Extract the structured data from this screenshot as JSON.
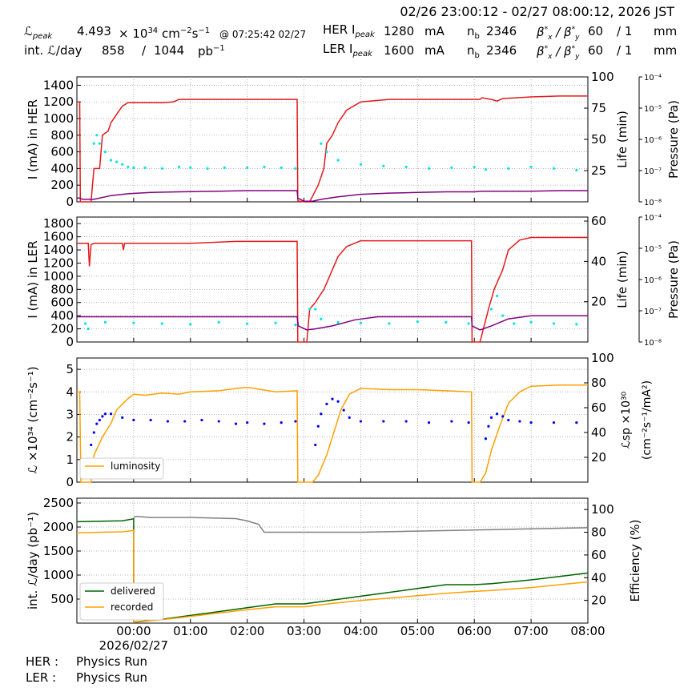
{
  "header": {
    "time_range": "02/26 23:00:12 - 02/27 08:00:12, 2026 JST",
    "peak_lumi_label": "ℒ",
    "peak_lumi_sub": "peak",
    "peak_lumi_value": "4.493",
    "peak_lumi_times": "× 10",
    "peak_lumi_exp": "34",
    "peak_lumi_unit": "cm",
    "peak_lumi_unit_exp1": "−2",
    "peak_lumi_unit_s": "s",
    "peak_lumi_unit_exp2": "−1",
    "peak_time": "@ 07:25:42 02/27",
    "int_label": "int. ℒ/day",
    "int_value": "858",
    "int_sep": "/",
    "int_total": "1044",
    "int_unit": "pb",
    "int_unit_exp": "−1",
    "her_label": "HER I",
    "her_sub": "peak",
    "her_value": "1280",
    "her_unit": "mA",
    "her_nb_label": "n",
    "her_nb_sub": "b",
    "her_nb": "2346",
    "beta_label": "β",
    "beta_x_sub": "x",
    "beta_sep": "/ β",
    "beta_y_sub": "y",
    "beta_star": "*",
    "her_beta_x": "60",
    "her_beta_sep": "/ 1",
    "her_beta_unit": "mm",
    "ler_label": "LER I",
    "ler_sub": "peak",
    "ler_value": "1600",
    "ler_unit": "mA",
    "ler_nb_label": "n",
    "ler_nb_sub": "b",
    "ler_nb": "2346",
    "ler_beta_x": "60",
    "ler_beta_sep": "/ 1",
    "ler_beta_unit": "mm"
  },
  "footer": {
    "her_label": "HER :",
    "her_status": "Physics Run",
    "ler_label": "LER :",
    "ler_status": "Physics Run"
  },
  "colors": {
    "current": "#e31a1c",
    "life": "#800080",
    "pressure": "#00e5e5",
    "luminosity": "#ffa000",
    "specific": "#0000ff",
    "delivered": "#006400",
    "recorded": "#ffa000",
    "efficiency": "#808080"
  },
  "chart_data": [
    {
      "type": "line",
      "id": "her",
      "x_unit": "hours since 2026/02/26 23:00:12",
      "ylabel": "I (mA) in HER",
      "ylim": [
        0,
        1500
      ],
      "yticks": [
        0,
        200,
        400,
        600,
        800,
        1000,
        1200,
        1400
      ],
      "y2label": "Life (min)",
      "y2lim": [
        0,
        100
      ],
      "y2ticks": [
        25,
        50,
        75,
        100
      ],
      "y3label": "Pressure (Pa)",
      "y3log": true,
      "y3ticks": [
        "10⁻⁸",
        "10⁻⁷",
        "10⁻⁶",
        "10⁻⁵",
        "10⁻⁴"
      ],
      "grid": true,
      "series": [
        {
          "role": "current",
          "axis": "y",
          "x": [
            0,
            0.05,
            0.06,
            0.25,
            0.3,
            0.35,
            0.4,
            0.45,
            0.55,
            0.6,
            0.7,
            0.8,
            0.9,
            1.0,
            1.2,
            1.5,
            1.7,
            1.8,
            2.0,
            2.4,
            2.8,
            3.88,
            3.89,
            3.9,
            4.0,
            4.1,
            4.25,
            4.35,
            4.4,
            4.5,
            4.6,
            4.75,
            5.0,
            5.5,
            6.0,
            6.5,
            7.0,
            7.1,
            7.14,
            7.2,
            7.3,
            7.4,
            7.5,
            8.0,
            8.5,
            9.0
          ],
          "y": [
            1200,
            1200,
            0,
            0,
            400,
            400,
            400,
            800,
            850,
            950,
            1050,
            1150,
            1190,
            1190,
            1190,
            1190,
            1200,
            1230,
            1230,
            1230,
            1230,
            1230,
            20,
            10,
            0,
            0,
            200,
            400,
            700,
            800,
            950,
            1100,
            1200,
            1230,
            1230,
            1230,
            1230,
            1230,
            1250,
            1240,
            1230,
            1210,
            1240,
            1260,
            1270,
            1270
          ]
        },
        {
          "role": "life",
          "axis": "y2",
          "x": [
            0,
            0.05,
            0.1,
            0.3,
            0.6,
            0.9,
            1.3,
            1.8,
            2.5,
            3.0,
            3.88,
            3.89,
            4.0,
            4.15,
            4.3,
            4.6,
            5.0,
            5.5,
            6.0,
            6.5,
            7.0,
            7.14,
            7.5,
            8.0,
            8.5,
            9.0
          ],
          "y": [
            3,
            3,
            2,
            2,
            5,
            6.5,
            7.5,
            8,
            8.5,
            9,
            9,
            3,
            0.5,
            0.5,
            2,
            4,
            6,
            7,
            7.5,
            8,
            8,
            8.5,
            8.5,
            8.5,
            9,
            9
          ]
        },
        {
          "role": "pressure",
          "axis": "y",
          "style": "dots",
          "x": [
            0.3,
            0.35,
            0.4,
            0.5,
            0.6,
            0.7,
            0.8,
            0.9,
            1.0,
            1.2,
            1.5,
            1.8,
            2.0,
            2.3,
            2.6,
            3.0,
            3.3,
            3.6,
            3.85,
            4.3,
            4.4,
            4.6,
            5.0,
            5.4,
            5.8,
            6.2,
            6.6,
            7.0,
            7.2,
            7.6,
            8.0,
            8.4,
            8.8
          ],
          "y": [
            700,
            800,
            700,
            600,
            500,
            480,
            450,
            420,
            410,
            410,
            400,
            420,
            410,
            400,
            410,
            410,
            420,
            410,
            400,
            700,
            600,
            500,
            450,
            430,
            420,
            400,
            410,
            420,
            390,
            400,
            420,
            400,
            380
          ]
        }
      ]
    },
    {
      "type": "line",
      "id": "ler",
      "ylabel": "I (mA) in LER",
      "ylim": [
        0,
        1900
      ],
      "yticks": [
        0,
        200,
        400,
        600,
        800,
        1000,
        1200,
        1400,
        1600,
        1800
      ],
      "y2label": "Life (min)",
      "y2lim": [
        0,
        62
      ],
      "y2ticks": [
        20,
        40,
        60
      ],
      "y3label": "Pressure (Pa)",
      "y3log": true,
      "y3ticks": [
        "10⁻⁸",
        "10⁻⁷",
        "10⁻⁶",
        "10⁻⁵",
        "10⁻⁴"
      ],
      "grid": true,
      "series": [
        {
          "role": "current",
          "axis": "y",
          "x": [
            0,
            0.2,
            0.22,
            0.25,
            0.3,
            0.8,
            0.82,
            0.84,
            1.0,
            2.0,
            2.8,
            3.0,
            3.88,
            3.89,
            3.9,
            4.05,
            4.1,
            4.2,
            4.35,
            4.45,
            4.6,
            4.75,
            5.0,
            5.5,
            6.0,
            6.95,
            6.96,
            7.0,
            7.1,
            7.25,
            7.35,
            7.5,
            7.6,
            7.8,
            8.0,
            8.5,
            9.0
          ],
          "y": [
            1500,
            1500,
            1150,
            1480,
            1500,
            1500,
            1400,
            1500,
            1500,
            1500,
            1530,
            1530,
            1530,
            0,
            0,
            0,
            500,
            600,
            800,
            1000,
            1300,
            1450,
            1540,
            1540,
            1540,
            1540,
            0,
            0,
            0,
            500,
            800,
            1100,
            1400,
            1550,
            1590,
            1590,
            1590
          ]
        },
        {
          "role": "life",
          "axis": "y2",
          "x": [
            0,
            0.2,
            0.5,
            1.5,
            2.5,
            3.0,
            3.88,
            3.9,
            4.05,
            4.2,
            4.5,
            4.9,
            5.3,
            6.0,
            6.5,
            6.95,
            6.96,
            7.1,
            7.3,
            7.6,
            8.0,
            8.5,
            9.0
          ],
          "y": [
            12.5,
            12.5,
            12.5,
            12.5,
            12.5,
            12.5,
            12.5,
            8,
            6,
            6.5,
            8,
            11,
            12.5,
            12.5,
            12.5,
            12.5,
            8,
            6,
            8,
            11.5,
            13,
            13,
            13
          ]
        },
        {
          "role": "pressure",
          "axis": "y",
          "style": "dots",
          "x": [
            0.15,
            0.2,
            0.5,
            1.0,
            1.5,
            2.0,
            2.5,
            3.0,
            3.5,
            3.85,
            4.1,
            4.2,
            4.3,
            4.6,
            5.0,
            5.5,
            6.0,
            6.5,
            6.9,
            7.3,
            7.4,
            7.5,
            7.7,
            8.0,
            8.4,
            8.8
          ],
          "y": [
            280,
            200,
            300,
            290,
            280,
            270,
            300,
            280,
            290,
            260,
            500,
            500,
            350,
            300,
            290,
            280,
            310,
            300,
            280,
            500,
            700,
            400,
            280,
            300,
            280,
            270
          ]
        }
      ]
    },
    {
      "type": "line",
      "id": "lumi",
      "ylabel": "ℒ ×10³⁴ (cm⁻²s⁻¹)",
      "ylim": [
        0,
        5.5
      ],
      "yticks": [
        0,
        1,
        2,
        3,
        4,
        5
      ],
      "y2label": "ℒsp ×10³⁰ (cm⁻²s⁻¹/mA²)",
      "y2lim": [
        0,
        100
      ],
      "y2ticks": [
        20,
        40,
        60,
        80,
        100
      ],
      "grid": true,
      "legend": {
        "position": "lower-left",
        "entries": [
          "luminosity"
        ]
      },
      "series": [
        {
          "name": "luminosity",
          "role": "luminosity",
          "axis": "y",
          "x": [
            0,
            0.05,
            0.07,
            0.25,
            0.3,
            0.45,
            0.6,
            0.7,
            0.9,
            1.0,
            1.2,
            1.5,
            1.8,
            2.0,
            2.5,
            2.8,
            3.0,
            3.5,
            3.88,
            3.89,
            4.05,
            4.15,
            4.25,
            4.4,
            4.5,
            4.65,
            4.8,
            5.0,
            5.5,
            6.0,
            6.5,
            6.95,
            6.96,
            7.1,
            7.2,
            7.3,
            7.45,
            7.6,
            7.8,
            8.0,
            8.5,
            9.0
          ],
          "y": [
            4.0,
            4.0,
            0,
            0,
            1.2,
            2.0,
            2.6,
            3.2,
            3.7,
            3.9,
            3.85,
            3.95,
            3.9,
            4.0,
            4.05,
            4.15,
            4.2,
            4.0,
            4.05,
            0,
            0,
            0,
            0.3,
            1.2,
            2.0,
            3.2,
            3.9,
            4.15,
            4.1,
            4.1,
            4.05,
            4.0,
            0,
            0,
            0.4,
            1.4,
            2.5,
            3.5,
            4.0,
            4.25,
            4.3,
            4.3
          ]
        },
        {
          "name": "specific",
          "role": "specific",
          "axis": "y2",
          "style": "dots",
          "x": [
            0.25,
            0.3,
            0.35,
            0.4,
            0.45,
            0.5,
            0.6,
            0.8,
            1.0,
            1.3,
            1.6,
            1.9,
            2.2,
            2.5,
            2.8,
            3.0,
            3.3,
            3.6,
            3.85,
            4.2,
            4.25,
            4.3,
            4.4,
            4.5,
            4.6,
            4.7,
            4.8,
            5.0,
            5.4,
            5.8,
            6.2,
            6.6,
            6.9,
            7.2,
            7.25,
            7.3,
            7.4,
            7.5,
            7.6,
            7.8,
            8.0,
            8.4,
            8.8
          ],
          "y": [
            30,
            40,
            47,
            50,
            53,
            55,
            55,
            52,
            50,
            50,
            49,
            49,
            50,
            49,
            47,
            48,
            47,
            48,
            49,
            30,
            45,
            55,
            63,
            67,
            65,
            58,
            52,
            49,
            49,
            49,
            48,
            49,
            48,
            35,
            45,
            52,
            55,
            53,
            50,
            49,
            48,
            48,
            48
          ]
        }
      ]
    },
    {
      "type": "line",
      "id": "intlumi",
      "ylabel": "int. ℒ/day (pb⁻¹)",
      "ylim": [
        0,
        2600
      ],
      "yticks": [
        500,
        1000,
        1500,
        2000,
        2500
      ],
      "y2label": "Efficiency (%)",
      "y2lim": [
        0,
        110
      ],
      "y2ticks": [
        20,
        40,
        60,
        80,
        100
      ],
      "xlabel": "2026/02/27",
      "xtick_labels": [
        "00:00",
        "01:00",
        "02:00",
        "03:00",
        "04:00",
        "05:00",
        "06:00",
        "07:00",
        "08:00"
      ],
      "grid": true,
      "legend": {
        "position": "lower-left",
        "entries": [
          "delivered",
          "recorded"
        ]
      },
      "series": [
        {
          "name": "delivered",
          "role": "delivered",
          "axis": "y",
          "x": [
            0,
            0.8,
            1.0,
            1.0,
            1.5,
            2.0,
            2.5,
            3.0,
            3.5,
            4.0,
            4.5,
            5.0,
            5.5,
            6.0,
            6.5,
            7.0,
            7.3,
            8.0,
            8.5,
            9.0
          ],
          "y": [
            2110,
            2130,
            2170,
            20,
            80,
            160,
            240,
            320,
            400,
            400,
            480,
            560,
            640,
            720,
            800,
            800,
            820,
            900,
            970,
            1044
          ]
        },
        {
          "name": "recorded",
          "role": "recorded",
          "axis": "y",
          "x": [
            0,
            0.8,
            1.0,
            1.0,
            1.5,
            2.0,
            2.5,
            3.0,
            3.5,
            4.0,
            4.5,
            5.0,
            5.5,
            6.0,
            6.5,
            7.0,
            7.3,
            8.0,
            8.5,
            9.0
          ],
          "y": [
            1880,
            1900,
            1930,
            15,
            70,
            140,
            210,
            280,
            340,
            340,
            410,
            470,
            520,
            570,
            620,
            660,
            680,
            740,
            800,
            858
          ]
        },
        {
          "name": "efficiency",
          "role": "efficiency",
          "axis": "y2",
          "x": [
            1.0,
            1.05,
            1.3,
            2.0,
            2.8,
            3.0,
            3.2,
            3.3,
            3.6,
            4.0,
            4.5,
            5.0,
            6.0,
            7.0,
            8.0,
            9.0
          ],
          "y": [
            93,
            94,
            93,
            93,
            92,
            90,
            87,
            80,
            80,
            80,
            80,
            80,
            81,
            82,
            83,
            84
          ]
        }
      ]
    }
  ]
}
